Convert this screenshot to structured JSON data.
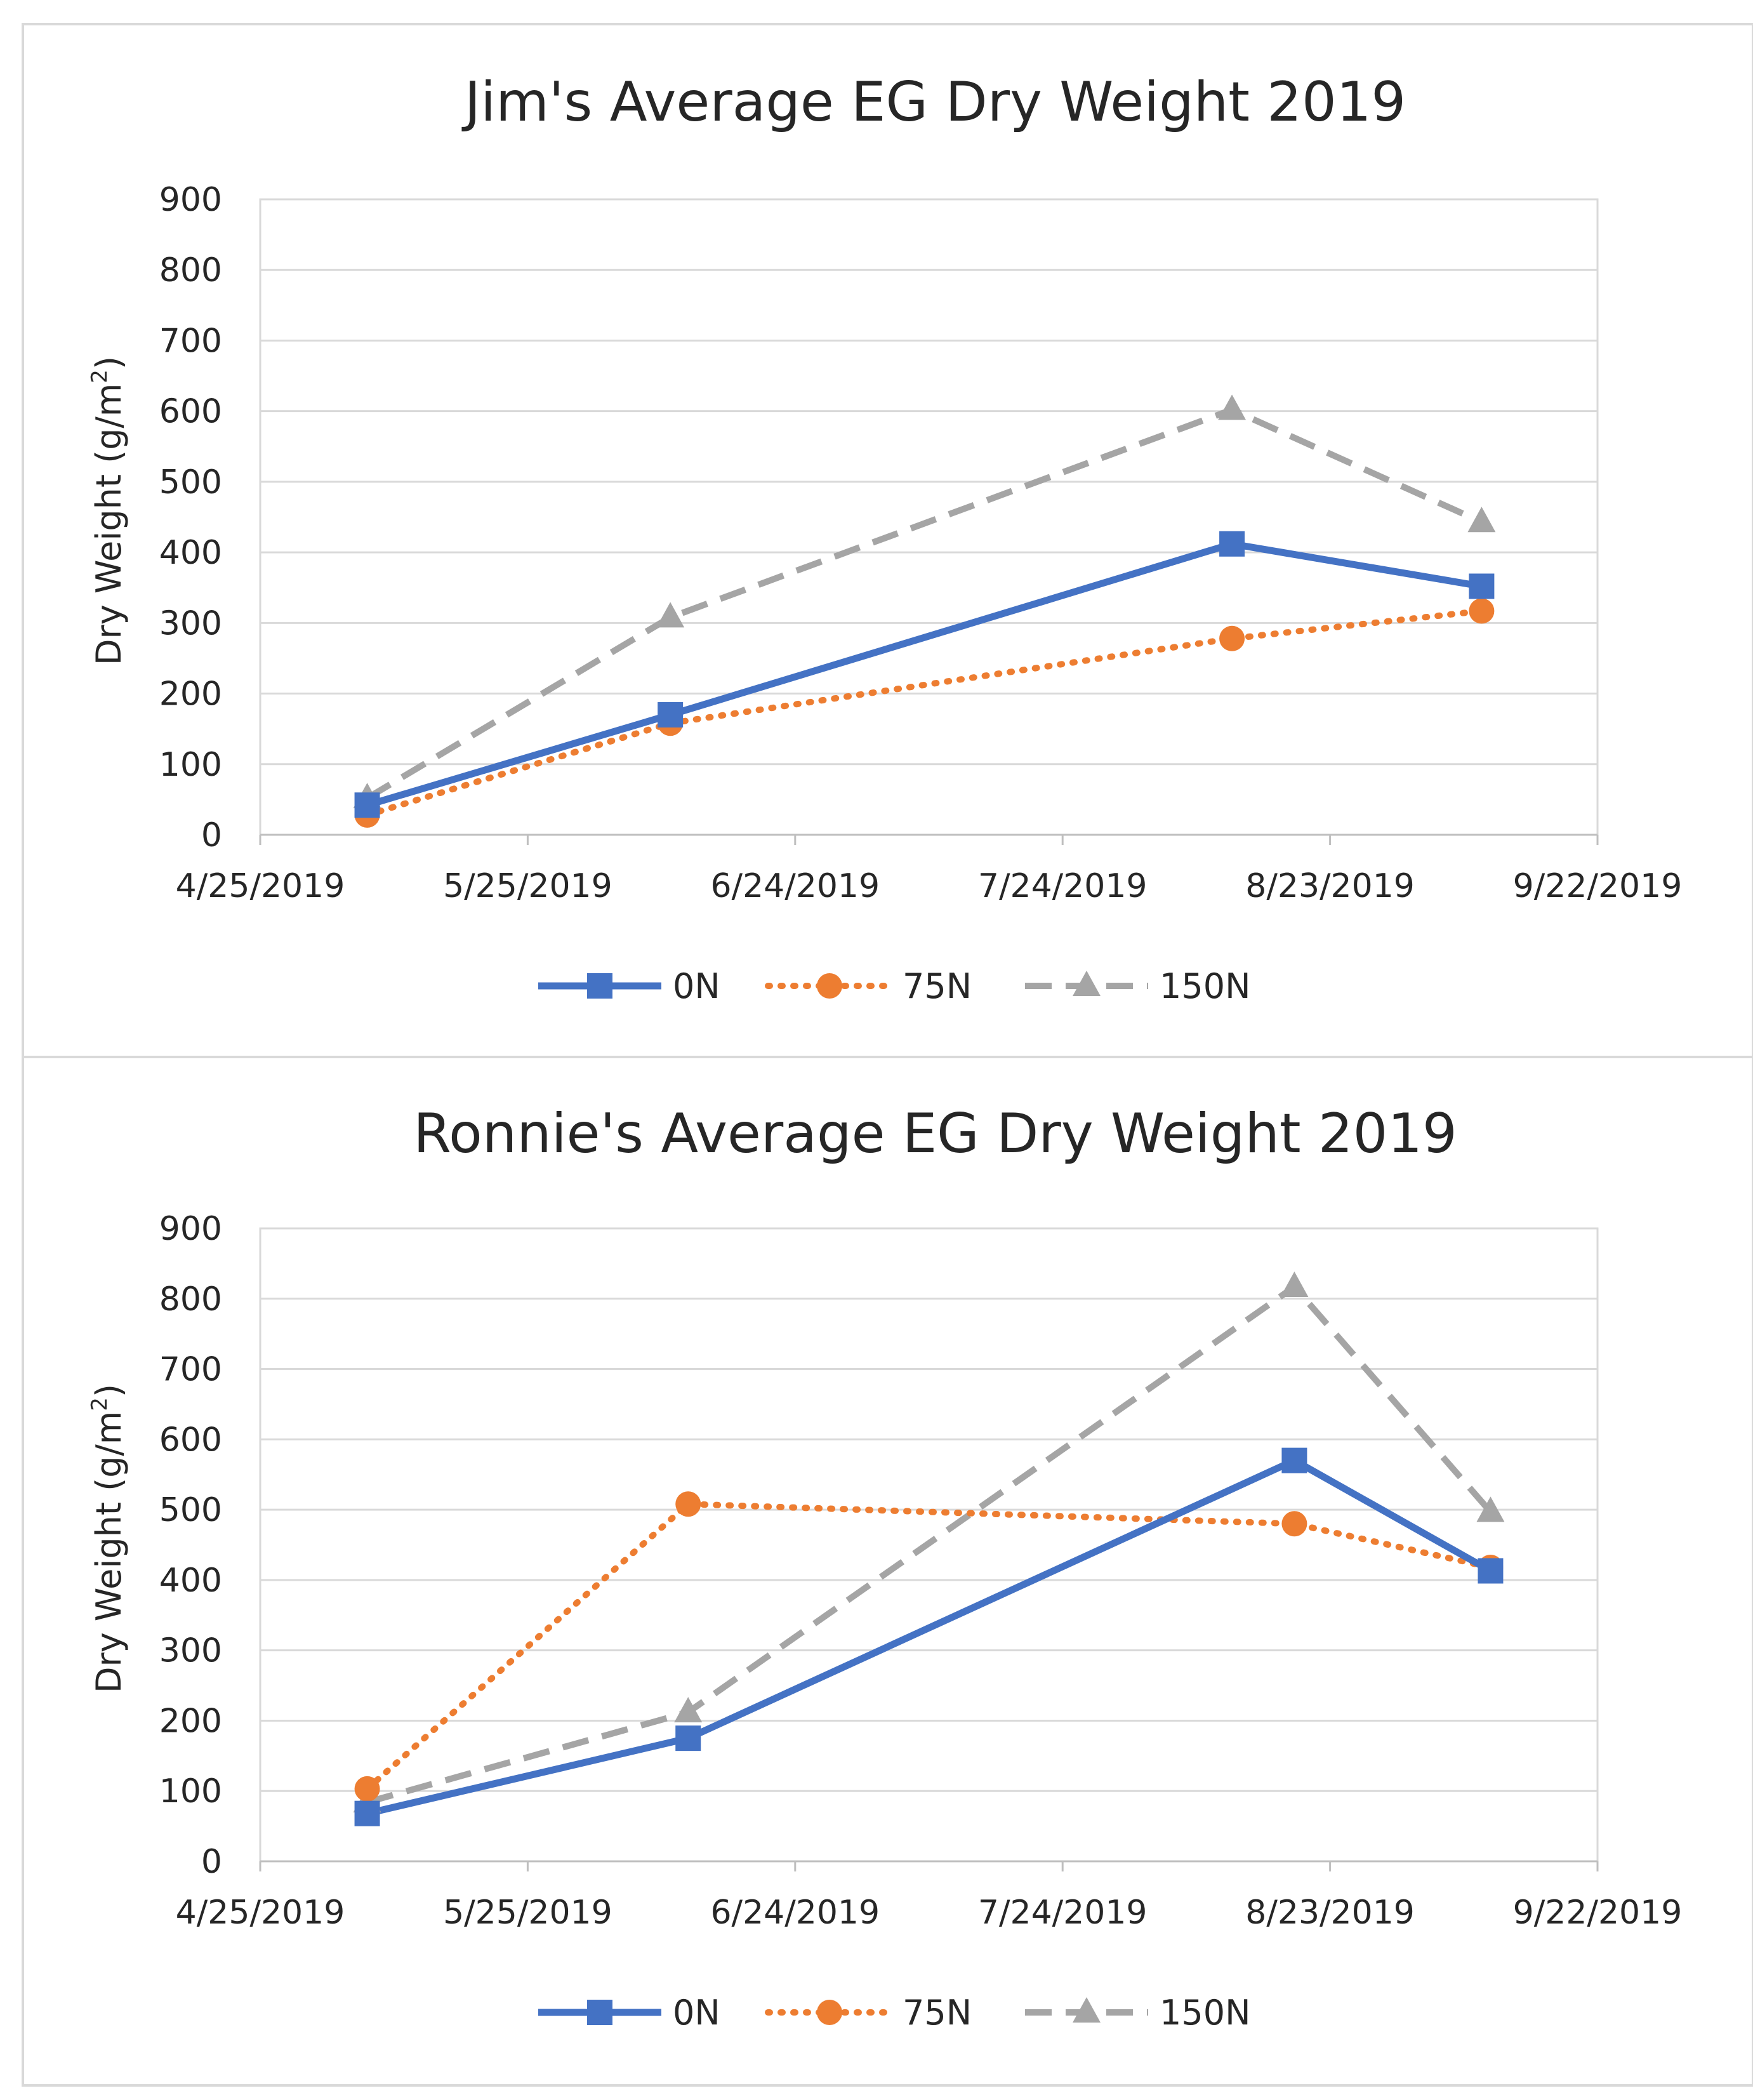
{
  "chart_data": [
    {
      "type": "line",
      "title": "Jim's Average EG Dry Weight 2019",
      "xlabel": "",
      "ylabel": "Dry Weight (g/m2)",
      "ylabel_parts": {
        "main": "Dry Weight (g/m",
        "sup": "2",
        "end": ")"
      },
      "ylim": [
        0,
        900
      ],
      "yticks": [
        0,
        100,
        200,
        300,
        400,
        500,
        600,
        700,
        800,
        900
      ],
      "xlim_days": [
        0,
        150
      ],
      "xticks": [
        {
          "day": 0,
          "label": "4/25/2019"
        },
        {
          "day": 30,
          "label": "5/25/2019"
        },
        {
          "day": 60,
          "label": "6/24/2019"
        },
        {
          "day": 90,
          "label": "7/24/2019"
        },
        {
          "day": 120,
          "label": "8/23/2019"
        },
        {
          "day": 150,
          "label": "9/22/2019"
        }
      ],
      "grid": true,
      "legend_position": "bottom",
      "series": [
        {
          "name": "0N",
          "color": "#4472c4",
          "dash": "solid",
          "marker": "square",
          "points": [
            {
              "day": 12,
              "value": 42
            },
            {
              "day": 46,
              "value": 170
            },
            {
              "day": 109,
              "value": 412
            },
            {
              "day": 137,
              "value": 352
            }
          ]
        },
        {
          "name": "75N",
          "color": "#ed7d31",
          "dash": "dot",
          "marker": "circle",
          "points": [
            {
              "day": 12,
              "value": 28
            },
            {
              "day": 46,
              "value": 158
            },
            {
              "day": 109,
              "value": 278
            },
            {
              "day": 137,
              "value": 317
            }
          ]
        },
        {
          "name": "150N",
          "color": "#a5a5a5",
          "dash": "dash",
          "marker": "triangle",
          "points": [
            {
              "day": 12,
              "value": 52
            },
            {
              "day": 46,
              "value": 308
            },
            {
              "day": 109,
              "value": 602
            },
            {
              "day": 137,
              "value": 443
            }
          ]
        }
      ]
    },
    {
      "type": "line",
      "title": "Ronnie's Average EG Dry Weight 2019",
      "xlabel": "",
      "ylabel": "Dry Weight (g/m2)",
      "ylabel_parts": {
        "main": "Dry Weight (g/m",
        "sup": "2",
        "end": ")"
      },
      "ylim": [
        0,
        900
      ],
      "yticks": [
        0,
        100,
        200,
        300,
        400,
        500,
        600,
        700,
        800,
        900
      ],
      "xlim_days": [
        0,
        150
      ],
      "xticks": [
        {
          "day": 0,
          "label": "4/25/2019"
        },
        {
          "day": 30,
          "label": "5/25/2019"
        },
        {
          "day": 60,
          "label": "6/24/2019"
        },
        {
          "day": 90,
          "label": "7/24/2019"
        },
        {
          "day": 120,
          "label": "8/23/2019"
        },
        {
          "day": 150,
          "label": "9/22/2019"
        }
      ],
      "grid": true,
      "legend_position": "bottom",
      "series": [
        {
          "name": "0N",
          "color": "#4472c4",
          "dash": "solid",
          "marker": "square",
          "points": [
            {
              "day": 12,
              "value": 68
            },
            {
              "day": 48,
              "value": 175
            },
            {
              "day": 116,
              "value": 570
            },
            {
              "day": 138,
              "value": 413
            }
          ]
        },
        {
          "name": "75N",
          "color": "#ed7d31",
          "dash": "dot",
          "marker": "circle",
          "points": [
            {
              "day": 12,
              "value": 103
            },
            {
              "day": 48,
              "value": 508
            },
            {
              "day": 116,
              "value": 480
            },
            {
              "day": 138,
              "value": 418
            }
          ]
        },
        {
          "name": "150N",
          "color": "#a5a5a5",
          "dash": "dash",
          "marker": "triangle",
          "points": [
            {
              "day": 12,
              "value": 84
            },
            {
              "day": 48,
              "value": 212
            },
            {
              "day": 116,
              "value": 817
            },
            {
              "day": 138,
              "value": 497
            }
          ]
        }
      ]
    }
  ]
}
